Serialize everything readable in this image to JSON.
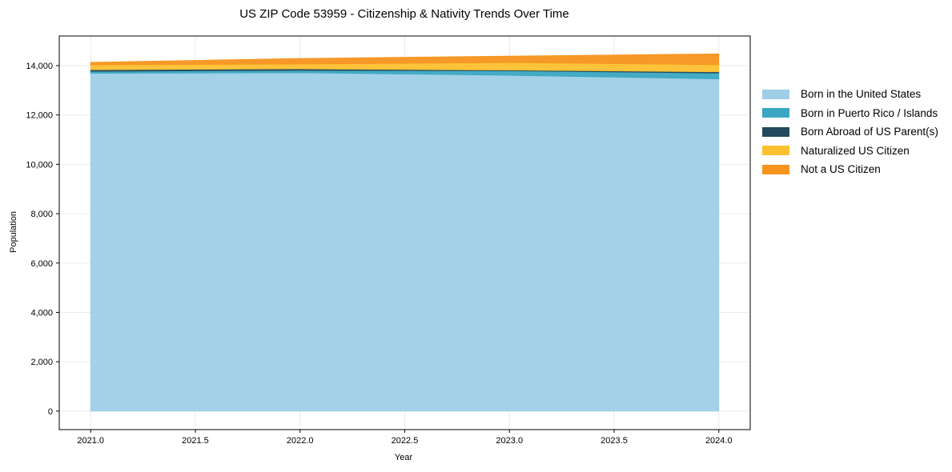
{
  "chart_data": {
    "type": "area",
    "stacked": true,
    "title": "US ZIP Code 53959 - Citizenship & Nativity Trends Over Time",
    "xlabel": "Year",
    "ylabel": "Population",
    "x": [
      2021,
      2022,
      2023,
      2024
    ],
    "x_ticks": [
      "2021.0",
      "2021.5",
      "2022.0",
      "2022.5",
      "2023.0",
      "2023.5",
      "2024.0"
    ],
    "y_ticks": [
      "0",
      "2,000",
      "4,000",
      "6,000",
      "8,000",
      "10,000",
      "12,000",
      "14,000"
    ],
    "xlim": [
      2020.85,
      2024.15
    ],
    "ylim": [
      -750,
      15200
    ],
    "grid": true,
    "legend_position": "right",
    "series": [
      {
        "name": "Born in the United States",
        "color": "#9ecfe6",
        "values": [
          13690,
          13710,
          13610,
          13460
        ]
      },
      {
        "name": "Born in Puerto Rico / Islands",
        "color": "#3aa6c2",
        "values": [
          80,
          95,
          180,
          240
        ]
      },
      {
        "name": "Born Abroad of US Parent(s)",
        "color": "#234a5c",
        "values": [
          65,
          65,
          30,
          50
        ]
      },
      {
        "name": "Naturalized US Citizen",
        "color": "#fdc02f",
        "values": [
          195,
          195,
          305,
          290
        ]
      },
      {
        "name": "Not a US Citizen",
        "color": "#f7941e",
        "values": [
          105,
          225,
          260,
          435
        ]
      }
    ]
  }
}
